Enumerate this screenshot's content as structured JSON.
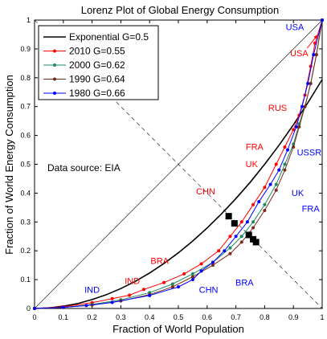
{
  "chart_data": {
    "type": "line",
    "title": "Lorenz Plot of Global Energy Consumption",
    "xlabel": "Fraction of World Population",
    "ylabel": "Fraction of World Energy Consumption",
    "xlim": [
      0,
      1
    ],
    "ylim": [
      0,
      1
    ],
    "xticks": [
      "0",
      "0.1",
      "0.2",
      "0.3",
      "0.4",
      "0.5",
      "0.6",
      "0.7",
      "0.8",
      "0.9",
      "1"
    ],
    "yticks": [
      "0",
      "0.1",
      "0.2",
      "0.3",
      "0.4",
      "0.5",
      "0.6",
      "0.7",
      "0.8",
      "0.9",
      "1"
    ],
    "grid": false,
    "legend_position": "top-left",
    "note": "Data source: EIA",
    "colors": {
      "exponential": "#000000",
      "y2010": "#ff0000",
      "y2000": "#1e8a60",
      "y1990": "#7a2a1a",
      "y1980": "#0000ff"
    },
    "reference_lines": [
      {
        "kind": "equality",
        "from": [
          0,
          0
        ],
        "to": [
          1,
          1
        ]
      },
      {
        "kind": "anti-diagonal",
        "from": [
          0,
          1
        ],
        "to": [
          1,
          0
        ]
      }
    ],
    "series": [
      {
        "name": "Exponential G=0.5",
        "style": "solid",
        "x": [
          0,
          0.05,
          0.1,
          0.15,
          0.2,
          0.25,
          0.3,
          0.35,
          0.4,
          0.45,
          0.5,
          0.55,
          0.6,
          0.65,
          0.7,
          0.75,
          0.8,
          0.85,
          0.9,
          0.95,
          1
        ],
        "y": [
          0,
          0.002,
          0.008,
          0.017,
          0.031,
          0.048,
          0.069,
          0.094,
          0.123,
          0.156,
          0.193,
          0.234,
          0.279,
          0.328,
          0.381,
          0.438,
          0.5,
          0.566,
          0.637,
          0.713,
          0.794
        ]
      },
      {
        "name": "2010 G=0.55",
        "style": "dotted-markers",
        "x": [
          0,
          0.1,
          0.2,
          0.27,
          0.33,
          0.38,
          0.45,
          0.52,
          0.58,
          0.64,
          0.68,
          0.72,
          0.76,
          0.8,
          0.84,
          0.87,
          0.9,
          0.92,
          0.94,
          0.96,
          0.975,
          1
        ],
        "y": [
          0,
          0.006,
          0.02,
          0.034,
          0.046,
          0.066,
          0.09,
          0.12,
          0.155,
          0.2,
          0.25,
          0.3,
          0.36,
          0.42,
          0.5,
          0.56,
          0.62,
          0.67,
          0.74,
          0.84,
          0.92,
          1
        ]
      },
      {
        "name": "2000 G=0.62",
        "style": "dotted-markers",
        "x": [
          0,
          0.1,
          0.2,
          0.3,
          0.4,
          0.48,
          0.55,
          0.62,
          0.68,
          0.72,
          0.76,
          0.8,
          0.84,
          0.87,
          0.9,
          0.92,
          0.94,
          0.96,
          0.98,
          1
        ],
        "y": [
          0,
          0.004,
          0.014,
          0.03,
          0.055,
          0.085,
          0.12,
          0.16,
          0.21,
          0.25,
          0.3,
          0.36,
          0.43,
          0.5,
          0.57,
          0.64,
          0.7,
          0.78,
          0.88,
          1
        ]
      },
      {
        "name": "1990 G=0.64",
        "style": "dotted-markers",
        "x": [
          0,
          0.1,
          0.2,
          0.3,
          0.4,
          0.48,
          0.55,
          0.62,
          0.68,
          0.72,
          0.76,
          0.8,
          0.84,
          0.87,
          0.9,
          0.92,
          0.94,
          0.96,
          0.98,
          1
        ],
        "y": [
          0,
          0.004,
          0.012,
          0.026,
          0.048,
          0.075,
          0.11,
          0.15,
          0.19,
          0.23,
          0.28,
          0.34,
          0.41,
          0.48,
          0.56,
          0.63,
          0.7,
          0.78,
          0.88,
          1
        ]
      },
      {
        "name": "1980 G=0.66",
        "style": "dotted-markers",
        "x": [
          0,
          0.1,
          0.18,
          0.27,
          0.4,
          0.5,
          0.55,
          0.58,
          0.62,
          0.66,
          0.7,
          0.74,
          0.78,
          0.82,
          0.85,
          0.88,
          0.91,
          0.93,
          0.95,
          0.97,
          1
        ],
        "y": [
          0,
          0.004,
          0.01,
          0.021,
          0.045,
          0.075,
          0.1,
          0.13,
          0.16,
          0.2,
          0.25,
          0.3,
          0.37,
          0.43,
          0.48,
          0.55,
          0.63,
          0.7,
          0.78,
          0.88,
          1
        ]
      }
    ],
    "gini_markers": [
      {
        "x": 0.675,
        "y": 0.32
      },
      {
        "x": 0.695,
        "y": 0.295
      },
      {
        "x": 0.745,
        "y": 0.255
      },
      {
        "x": 0.76,
        "y": 0.24
      },
      {
        "x": 0.77,
        "y": 0.23
      }
    ],
    "annotations": [
      {
        "text": "USA",
        "x": 0.905,
        "y": 0.965,
        "color": "#0000ff"
      },
      {
        "text": "USA",
        "x": 0.92,
        "y": 0.875,
        "color": "#ff0000",
        "arrow_to": [
          0.985,
          0.95
        ]
      },
      {
        "text": "RUS",
        "x": 0.845,
        "y": 0.685,
        "color": "#ff0000"
      },
      {
        "text": "USSR",
        "x": 0.955,
        "y": 0.53,
        "color": "#0000ff"
      },
      {
        "text": "FRA",
        "x": 0.765,
        "y": 0.55,
        "color": "#ff0000"
      },
      {
        "text": "UK",
        "x": 0.755,
        "y": 0.49,
        "color": "#ff0000"
      },
      {
        "text": "UK",
        "x": 0.915,
        "y": 0.39,
        "color": "#0000ff"
      },
      {
        "text": "FRA",
        "x": 0.96,
        "y": 0.335,
        "color": "#0000ff"
      },
      {
        "text": "CHN",
        "x": 0.595,
        "y": 0.395,
        "color": "#ff0000"
      },
      {
        "text": "BRA",
        "x": 0.435,
        "y": 0.155,
        "color": "#ff0000"
      },
      {
        "text": "BRA",
        "x": 0.73,
        "y": 0.08,
        "color": "#0000ff"
      },
      {
        "text": "CHN",
        "x": 0.605,
        "y": 0.055,
        "color": "#0000ff"
      },
      {
        "text": "IND",
        "x": 0.34,
        "y": 0.085,
        "color": "#ff0000"
      },
      {
        "text": "IND",
        "x": 0.2,
        "y": 0.055,
        "color": "#0000ff"
      }
    ]
  }
}
